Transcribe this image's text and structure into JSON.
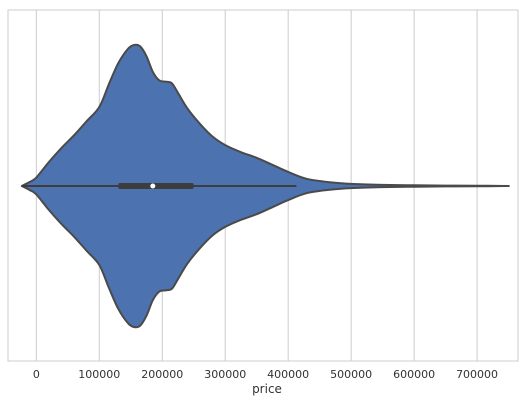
{
  "chart_data": {
    "type": "violin",
    "title": "",
    "xlabel": "price",
    "ylabel": "",
    "xlim": [
      -45000,
      765000
    ],
    "xticks": [
      0,
      100000,
      200000,
      300000,
      400000,
      500000,
      600000,
      700000
    ],
    "xtick_labels": [
      "0",
      "100000",
      "200000",
      "300000",
      "400000",
      "500000",
      "600000",
      "700000"
    ],
    "grid": true,
    "violin": {
      "color": "#4c72b0",
      "edge_color": "#4a4a4a",
      "density_profile": {
        "x": [
          -23000,
          -10000,
          0,
          20000,
          40000,
          60000,
          80000,
          100000,
          115000,
          130000,
          145000,
          155000,
          165000,
          175000,
          185000,
          195000,
          205000,
          215000,
          225000,
          240000,
          260000,
          280000,
          300000,
          325000,
          350000,
          375000,
          400000,
          430000,
          470000,
          500000,
          550000,
          600000,
          650000,
          700000,
          745000
        ],
        "half_width": [
          0.0,
          0.03,
          0.06,
          0.17,
          0.27,
          0.36,
          0.46,
          0.56,
          0.72,
          0.87,
          0.97,
          1.0,
          0.99,
          0.92,
          0.81,
          0.75,
          0.74,
          0.73,
          0.66,
          0.55,
          0.44,
          0.35,
          0.29,
          0.24,
          0.2,
          0.15,
          0.1,
          0.05,
          0.025,
          0.015,
          0.008,
          0.005,
          0.003,
          0.002,
          0.0
        ]
      },
      "whisker_low": -23000,
      "whisker_high": 413000,
      "q1": 130000,
      "median": 185000,
      "q3": 250000
    }
  }
}
